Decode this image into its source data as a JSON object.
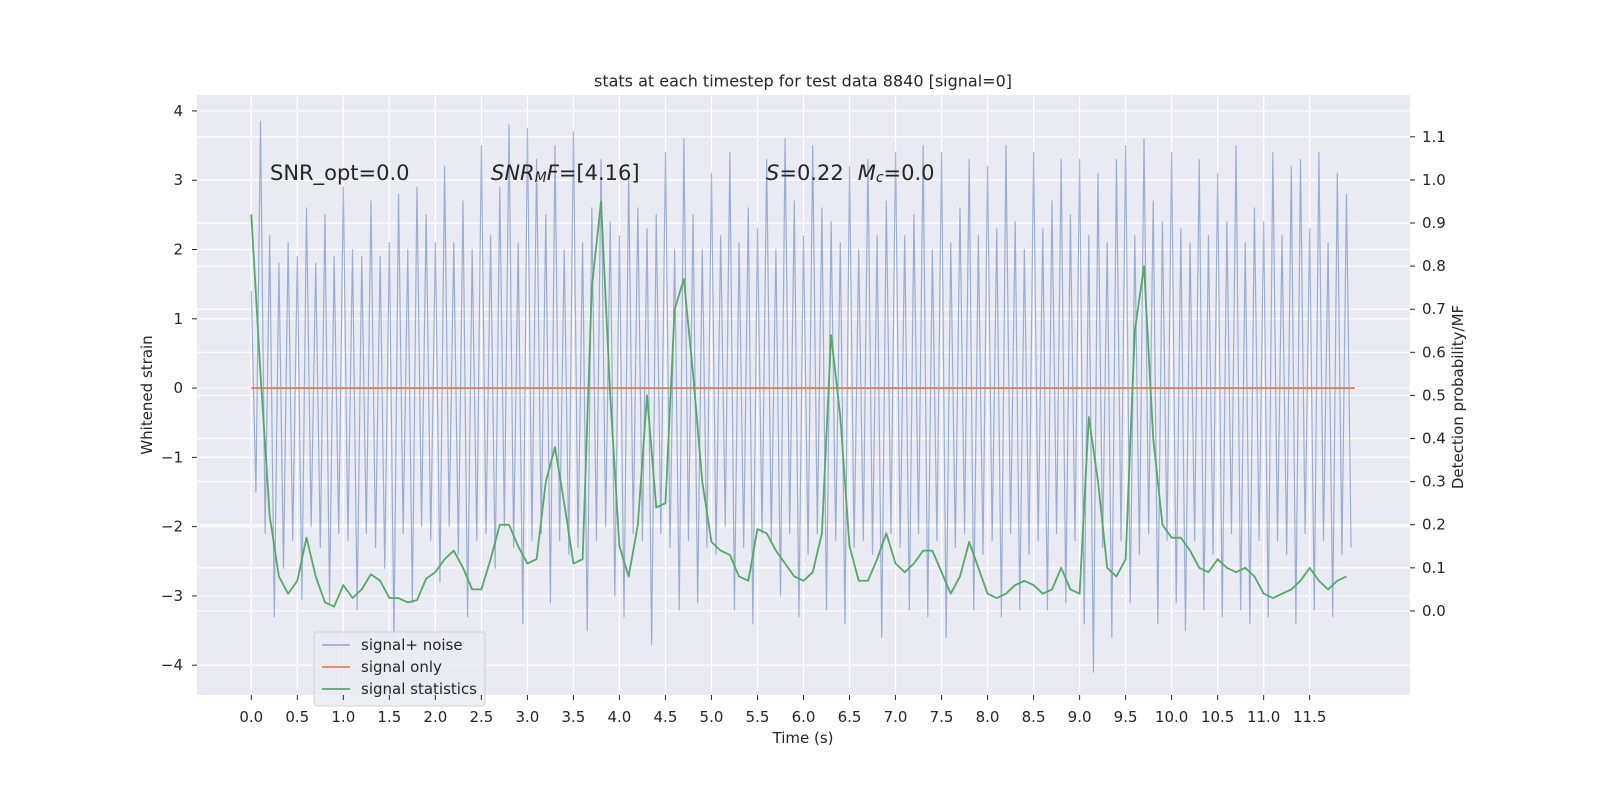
{
  "chart_data": {
    "type": "line",
    "title": "stats at each timestep for test data 8840 [signal=0]",
    "xlabel": "Time (s)",
    "ylabel": "Whitened strain",
    "y2label": "Detection probability/MF",
    "annotations": [
      [
        "SNR_opt=0.0"
      ],
      [
        "SNR",
        "M",
        "F",
        "=[4.16]"
      ],
      [
        "S",
        "=0.22",
        "M",
        "c",
        "=0.0"
      ]
    ],
    "xlim": [
      -0.59,
      12.59
    ],
    "xticks": [
      {
        "value": 0,
        "label": "0.0"
      },
      0.5,
      {
        "value": 1,
        "label": "1.0"
      },
      1.5,
      {
        "value": 2,
        "label": "2.0"
      },
      2.5,
      {
        "value": 3,
        "label": "3.0"
      },
      3.5,
      {
        "value": 4,
        "label": "4.0"
      },
      4.5,
      {
        "value": 5,
        "label": "5.0"
      },
      5.5,
      {
        "value": 6,
        "label": "6.0"
      },
      6.5,
      {
        "value": 7,
        "label": "7.0"
      },
      7.5,
      {
        "value": 8,
        "label": "8.0"
      },
      8.5,
      {
        "value": 9,
        "label": "9.0"
      },
      9.5,
      {
        "value": 10,
        "label": "10.0"
      },
      10.5,
      {
        "value": 11,
        "label": "11.0"
      },
      11.5
    ],
    "ylim": [
      -4.43,
      4.23
    ],
    "yticks": [
      {
        "value": -4,
        "label": "−4"
      },
      {
        "value": -3,
        "label": "−3"
      },
      {
        "value": -2,
        "label": "−2"
      },
      {
        "value": -1,
        "label": "−1"
      },
      0,
      1,
      2,
      3,
      4
    ],
    "y2lim": [
      -0.195,
      1.197
    ],
    "y2ticks": [
      {
        "value": 0,
        "label": "0.0"
      },
      0.1,
      0.2,
      0.3,
      0.4,
      0.5,
      0.6,
      0.7,
      0.8,
      0.9,
      {
        "value": 1,
        "label": "1.0"
      },
      1.1
    ],
    "grid": true,
    "legend": "lower left",
    "series": [
      {
        "name": "signal+ noise",
        "color": "#4c72b0",
        "alpha": 0.5,
        "x": [
          0,
          0.05,
          0.1,
          0.15,
          0.2,
          0.25,
          0.3,
          0.35,
          0.4,
          0.45,
          0.5,
          0.55,
          0.6,
          0.65,
          0.7,
          0.75,
          0.8,
          0.85,
          0.9,
          0.95,
          1,
          1.05,
          1.1,
          1.15,
          1.2,
          1.25,
          1.3,
          1.35,
          1.4,
          1.45,
          1.5,
          1.55,
          1.6,
          1.65,
          1.7,
          1.75,
          1.8,
          1.85,
          1.9,
          1.95,
          2,
          2.05,
          2.1,
          2.15,
          2.2,
          2.25,
          2.3,
          2.35,
          2.4,
          2.45,
          2.5,
          2.55,
          2.6,
          2.65,
          2.7,
          2.75,
          2.8,
          2.85,
          2.9,
          2.95,
          3,
          3.05,
          3.1,
          3.15,
          3.2,
          3.25,
          3.3,
          3.35,
          3.4,
          3.45,
          3.5,
          3.55,
          3.6,
          3.65,
          3.7,
          3.75,
          3.8,
          3.85,
          3.9,
          3.95,
          4,
          4.05,
          4.1,
          4.15,
          4.2,
          4.25,
          4.3,
          4.35,
          4.4,
          4.45,
          4.5,
          4.55,
          4.6,
          4.65,
          4.7,
          4.75,
          4.8,
          4.85,
          4.9,
          4.95,
          5,
          5.05,
          5.1,
          5.15,
          5.2,
          5.25,
          5.3,
          5.35,
          5.4,
          5.45,
          5.5,
          5.55,
          5.6,
          5.65,
          5.7,
          5.75,
          5.8,
          5.85,
          5.9,
          5.95,
          6,
          6.05,
          6.1,
          6.15,
          6.2,
          6.25,
          6.3,
          6.35,
          6.4,
          6.45,
          6.5,
          6.55,
          6.6,
          6.65,
          6.7,
          6.75,
          6.8,
          6.85,
          6.9,
          6.95,
          7,
          7.05,
          7.1,
          7.15,
          7.2,
          7.25,
          7.3,
          7.35,
          7.4,
          7.45,
          7.5,
          7.55,
          7.6,
          7.65,
          7.7,
          7.75,
          7.8,
          7.85,
          7.9,
          7.95,
          8,
          8.05,
          8.1,
          8.15,
          8.2,
          8.25,
          8.3,
          8.35,
          8.4,
          8.45,
          8.5,
          8.55,
          8.6,
          8.65,
          8.7,
          8.75,
          8.8,
          8.85,
          8.9,
          8.95,
          9,
          9.05,
          9.1,
          9.15,
          9.2,
          9.25,
          9.3,
          9.35,
          9.4,
          9.45,
          9.5,
          9.55,
          9.6,
          9.65,
          9.7,
          9.75,
          9.8,
          9.85,
          9.9,
          9.95,
          10,
          10.05,
          10.1,
          10.15,
          10.2,
          10.25,
          10.3,
          10.35,
          10.4,
          10.45,
          10.5,
          10.55,
          10.6,
          10.65,
          10.7,
          10.75,
          10.8,
          10.85,
          10.9,
          10.95,
          11,
          11.05,
          11.1,
          11.15,
          11.2,
          11.25,
          11.3,
          11.35,
          11.4,
          11.45,
          11.5,
          11.55,
          11.6,
          11.65,
          11.7,
          11.75,
          11.8,
          11.85,
          11.9,
          11.95
        ],
        "values": [
          1.4,
          -1.5,
          3.85,
          -2.1,
          2.2,
          -3.3,
          1.8,
          -2.6,
          2.1,
          -2.2,
          1.9,
          -3.05,
          2.6,
          -2.0,
          1.8,
          -2.3,
          2.5,
          -3.1,
          1.9,
          -2.1,
          2.9,
          -2.2,
          2.0,
          -3.2,
          1.9,
          -2.1,
          2.7,
          -2.3,
          1.9,
          -2.6,
          2.1,
          -3.6,
          2.8,
          -2.1,
          2.0,
          -3.1,
          2.9,
          -2.0,
          2.5,
          -2.2,
          2.1,
          -2.8,
          3.2,
          -2.0,
          2.1,
          -2.4,
          2.7,
          -3.3,
          2.0,
          -2.2,
          3.5,
          -2.1,
          2.2,
          -2.6,
          2.9,
          -2.0,
          3.8,
          -2.3,
          2.1,
          -3.4,
          3.75,
          -2.2,
          3.3,
          -2.1,
          2.5,
          -3.1,
          3.5,
          -2.2,
          2.0,
          -2.4,
          3.7,
          -2.3,
          2.1,
          -3.5,
          2.6,
          -2.2,
          3.3,
          -2.0,
          2.4,
          -3.0,
          2.2,
          -3.3,
          3.1,
          -2.1,
          2.6,
          -2.2,
          2.3,
          -3.7,
          2.5,
          -2.1,
          3.4,
          -2.3,
          2.0,
          -3.2,
          3.6,
          -2.2,
          2.5,
          -3.1,
          2.0,
          -2.3,
          3.1,
          -2.4,
          2.2,
          -2.0,
          3.4,
          -3.2,
          2.1,
          -2.3,
          2.6,
          -3.4,
          2.3,
          -2.1,
          3.3,
          -2.2,
          2.0,
          -3.0,
          3.6,
          -2.1,
          2.7,
          -3.3,
          2.2,
          -2.4,
          3.5,
          -2.1,
          2.6,
          -3.2,
          2.4,
          -2.2,
          2.1,
          -3.4,
          3.2,
          -2.3,
          2.0,
          -2.2,
          3.3,
          -2.4,
          2.2,
          -3.6,
          2.7,
          -2.1,
          3.4,
          -2.3,
          2.2,
          -3.2,
          2.5,
          -2.1,
          3.5,
          -3.3,
          2.0,
          -2.2,
          3.4,
          -3.6,
          2.1,
          -2.3,
          2.6,
          -2.1,
          3.3,
          -3.2,
          2.2,
          -2.4,
          3.2,
          -2.2,
          2.3,
          -3.3,
          3.5,
          -2.1,
          2.4,
          -3.2,
          2.0,
          -2.4,
          3.4,
          -2.2,
          2.3,
          -3.2,
          2.7,
          -2.1,
          3.3,
          -3.1,
          2.5,
          -2.2,
          3.3,
          -3.4,
          2.2,
          -4.1,
          3.1,
          -2.3,
          2.1,
          -3.6,
          3.3,
          -2.2,
          3.5,
          -3.1,
          2.2,
          -2.4,
          3.6,
          -2.1,
          2.7,
          -3.4,
          2.4,
          -2.2,
          3.4,
          -3.1,
          2.3,
          -3.5,
          2.1,
          -2.2,
          3.3,
          -3.2,
          2.2,
          -2.4,
          3.1,
          -3.3,
          2.4,
          -2.1,
          3.5,
          -3.2,
          2.1,
          -3.4,
          2.6,
          -2.2,
          2.4,
          -3.3,
          3.4,
          -2.2,
          2.2,
          -2.4,
          3.2,
          -3.4,
          3.3,
          -2.1,
          2.3,
          -3.2,
          3.4,
          -2.2,
          2.1,
          -3.3,
          3.1,
          -2.4,
          2.8,
          -2.3
        ]
      },
      {
        "name": "signal only",
        "color": "#dd8452",
        "x": [
          0,
          11.99
        ],
        "values": [
          0,
          0
        ]
      },
      {
        "name": "signal statistics",
        "color": "#55a868",
        "axis": "y2",
        "x": [
          0,
          0.1,
          0.2,
          0.3,
          0.4,
          0.5,
          0.6,
          0.7,
          0.8,
          0.9,
          1,
          1.1,
          1.2,
          1.3,
          1.4,
          1.5,
          1.6,
          1.7,
          1.8,
          1.9,
          2,
          2.1,
          2.2,
          2.3,
          2.4,
          2.5,
          2.6,
          2.7,
          2.8,
          2.9,
          3,
          3.1,
          3.2,
          3.3,
          3.4,
          3.5,
          3.6,
          3.7,
          3.8,
          3.9,
          4,
          4.1,
          4.2,
          4.3,
          4.4,
          4.5,
          4.6,
          4.7,
          4.8,
          4.9,
          5,
          5.1,
          5.2,
          5.3,
          5.4,
          5.5,
          5.6,
          5.7,
          5.8,
          5.9,
          6,
          6.1,
          6.2,
          6.3,
          6.4,
          6.5,
          6.6,
          6.7,
          6.8,
          6.9,
          7,
          7.1,
          7.2,
          7.3,
          7.4,
          7.5,
          7.6,
          7.7,
          7.8,
          7.9,
          8,
          8.1,
          8.2,
          8.3,
          8.4,
          8.5,
          8.6,
          8.7,
          8.8,
          8.9,
          9,
          9.1,
          9.2,
          9.3,
          9.4,
          9.5,
          9.6,
          9.7,
          9.8,
          9.9,
          10,
          10.1,
          10.2,
          10.3,
          10.4,
          10.5,
          10.6,
          10.7,
          10.8,
          10.9,
          11,
          11.1,
          11.2,
          11.3,
          11.4,
          11.5,
          11.6,
          11.7,
          11.8,
          11.9
        ],
        "values": [
          0.92,
          0.55,
          0.22,
          0.08,
          0.04,
          0.07,
          0.17,
          0.08,
          0.02,
          0.01,
          0.06,
          0.03,
          0.05,
          0.085,
          0.07,
          0.03,
          0.03,
          0.02,
          0.025,
          0.075,
          0.09,
          0.12,
          0.14,
          0.1,
          0.05,
          0.05,
          0.12,
          0.2,
          0.2,
          0.15,
          0.11,
          0.12,
          0.3,
          0.38,
          0.25,
          0.11,
          0.12,
          0.75,
          0.95,
          0.5,
          0.15,
          0.08,
          0.2,
          0.5,
          0.24,
          0.25,
          0.7,
          0.77,
          0.55,
          0.3,
          0.16,
          0.14,
          0.13,
          0.08,
          0.07,
          0.19,
          0.18,
          0.14,
          0.11,
          0.08,
          0.07,
          0.09,
          0.18,
          0.64,
          0.45,
          0.15,
          0.07,
          0.07,
          0.12,
          0.18,
          0.11,
          0.09,
          0.11,
          0.14,
          0.14,
          0.09,
          0.04,
          0.08,
          0.16,
          0.1,
          0.04,
          0.03,
          0.04,
          0.06,
          0.07,
          0.06,
          0.04,
          0.05,
          0.1,
          0.05,
          0.04,
          0.45,
          0.3,
          0.1,
          0.08,
          0.12,
          0.65,
          0.8,
          0.4,
          0.2,
          0.17,
          0.17,
          0.14,
          0.1,
          0.09,
          0.12,
          0.1,
          0.09,
          0.1,
          0.08,
          0.04,
          0.03,
          0.04,
          0.05,
          0.07,
          0.1,
          0.07,
          0.05,
          0.07,
          0.08
        ]
      }
    ]
  }
}
